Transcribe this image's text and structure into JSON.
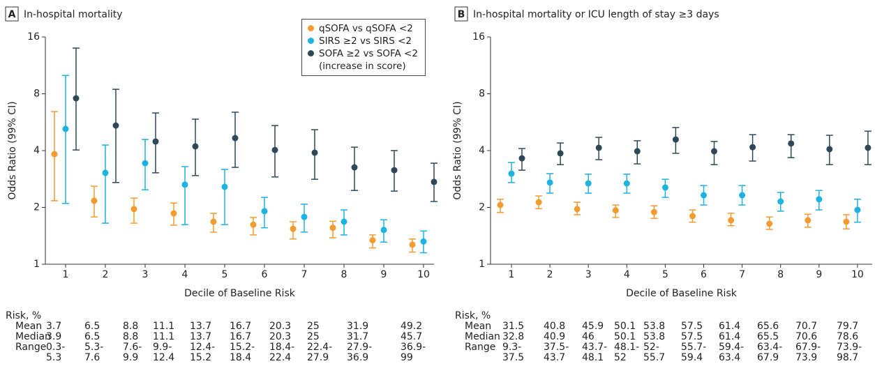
{
  "chart_data": [
    {
      "type": "errorbar",
      "panel": "A",
      "title": "In-hospital mortality",
      "ylabel": "Odds Ratio (99% CI)",
      "xlabel": "Decile of Baseline Risk",
      "categories": [
        1,
        2,
        3,
        4,
        5,
        6,
        7,
        8,
        9,
        10
      ],
      "ylim": [
        1,
        16
      ],
      "yticks": [
        1,
        2,
        4,
        8,
        16
      ],
      "yscale": "log",
      "legend": "upper right",
      "series": [
        {
          "name": "qSOFA vs qSOFA <2",
          "color": "#f29b30",
          "values": [
            3.83,
            2.17,
            1.96,
            1.86,
            1.68,
            1.62,
            1.54,
            1.56,
            1.34,
            1.27
          ],
          "lower": [
            2.17,
            1.78,
            1.65,
            1.61,
            1.48,
            1.43,
            1.36,
            1.38,
            1.22,
            1.16
          ],
          "upper": [
            6.44,
            2.59,
            2.24,
            2.11,
            1.86,
            1.77,
            1.68,
            1.69,
            1.43,
            1.36
          ]
        },
        {
          "name": "SIRS ≥2 vs SIRS <2",
          "color": "#1cb2e2",
          "values": [
            5.21,
            3.05,
            3.43,
            2.64,
            2.57,
            1.91,
            1.78,
            1.68,
            1.52,
            1.32
          ],
          "lower": [
            2.1,
            1.65,
            2.48,
            1.62,
            1.62,
            1.56,
            1.48,
            1.43,
            1.31,
            1.15
          ],
          "upper": [
            10.0,
            4.28,
            4.58,
            3.29,
            3.18,
            2.26,
            2.08,
            1.94,
            1.72,
            1.5
          ]
        },
        {
          "name": "SOFA ≥2 vs SOFA <2 (increase in score)",
          "color": "#2f4858",
          "values": [
            7.57,
            5.43,
            4.47,
            4.21,
            4.66,
            4.03,
            3.9,
            3.26,
            3.15,
            2.73
          ],
          "lower": [
            4.03,
            2.71,
            3.05,
            2.95,
            3.26,
            2.9,
            2.82,
            2.46,
            2.44,
            2.15
          ],
          "upper": [
            13.97,
            8.45,
            6.33,
            5.87,
            6.39,
            5.43,
            5.16,
            4.17,
            4.0,
            3.43
          ]
        }
      ],
      "risk_table": {
        "title": "Risk, %",
        "rows": [
          {
            "label": "Mean",
            "values": [
              3.7,
              6.5,
              8.8,
              11.1,
              13.7,
              16.7,
              20.3,
              25,
              31.9,
              49.2
            ]
          },
          {
            "label": "Median",
            "values": [
              3.9,
              6.5,
              8.8,
              11.1,
              13.7,
              16.7,
              20.3,
              25,
              31.7,
              45.7
            ]
          },
          {
            "label": "Range",
            "values": [
              [
                "0.3-",
                "5.3"
              ],
              [
                "5.3-",
                "7.6"
              ],
              [
                "7.6-",
                "9.9"
              ],
              [
                "9.9-",
                "12.4"
              ],
              [
                "12.4-",
                "15.2"
              ],
              [
                "15.2-",
                "18.4"
              ],
              [
                "18.4-",
                "22.4"
              ],
              [
                "22.4-",
                "27.9"
              ],
              [
                "27.9-",
                "36.9"
              ],
              [
                "36.9-",
                "99"
              ]
            ]
          }
        ]
      }
    },
    {
      "type": "errorbar",
      "panel": "B",
      "title": "In-hospital mortality or ICU length of stay ≥3 days",
      "ylabel": "Odds Ratio (99% CI)",
      "xlabel": "Decile of Baseline Risk",
      "categories": [
        1,
        2,
        3,
        4,
        5,
        6,
        7,
        8,
        9,
        10
      ],
      "ylim": [
        1,
        16
      ],
      "yticks": [
        1,
        2,
        4,
        8,
        16
      ],
      "yscale": "log",
      "series": [
        {
          "color": "#f29b30",
          "values": [
            2.06,
            2.13,
            1.96,
            1.93,
            1.89,
            1.8,
            1.71,
            1.64,
            1.71,
            1.68
          ],
          "lower": [
            1.88,
            1.97,
            1.83,
            1.77,
            1.75,
            1.67,
            1.6,
            1.53,
            1.57,
            1.54
          ],
          "upper": [
            2.21,
            2.3,
            2.13,
            2.06,
            2.04,
            1.94,
            1.86,
            1.78,
            1.84,
            1.83
          ]
        },
        {
          "color": "#1cb2e2",
          "values": [
            3.02,
            2.71,
            2.68,
            2.68,
            2.55,
            2.32,
            2.32,
            2.15,
            2.21,
            1.94
          ],
          "lower": [
            2.71,
            2.38,
            2.38,
            2.38,
            2.26,
            2.06,
            2.06,
            1.91,
            1.94,
            1.67
          ],
          "upper": [
            3.46,
            3.02,
            3.0,
            3.0,
            2.82,
            2.61,
            2.61,
            2.4,
            2.46,
            2.21
          ]
        },
        {
          "color": "#2f4858",
          "values": [
            3.64,
            3.87,
            4.14,
            3.97,
            4.58,
            3.97,
            4.17,
            4.36,
            4.07,
            4.14
          ],
          "lower": [
            3.15,
            3.37,
            3.58,
            3.4,
            3.87,
            3.37,
            3.52,
            3.67,
            3.37,
            3.37
          ],
          "upper": [
            4.1,
            4.39,
            4.7,
            4.51,
            5.3,
            4.47,
            4.86,
            4.86,
            4.82,
            5.07
          ]
        }
      ],
      "risk_table": {
        "title": "Risk, %",
        "rows": [
          {
            "label": "Mean",
            "values": [
              31.5,
              40.8,
              45.9,
              50.1,
              53.8,
              57.5,
              61.4,
              65.6,
              70.7,
              79.7
            ]
          },
          {
            "label": "Median",
            "values": [
              32.8,
              40.9,
              46,
              50.1,
              53.8,
              57.5,
              61.4,
              65.5,
              70.6,
              78.6
            ]
          },
          {
            "label": "Range",
            "values": [
              [
                "9.3-",
                "37.5"
              ],
              [
                "37.5-",
                "43.7"
              ],
              [
                "43.7-",
                "48.1"
              ],
              [
                "48.1-",
                "52"
              ],
              [
                "52-",
                "55.7"
              ],
              [
                "55.7-",
                "59.4"
              ],
              [
                "59.4-",
                "63.4"
              ],
              [
                "63.4-",
                "67.9"
              ],
              [
                "67.9-",
                "73.9"
              ],
              [
                "73.9-",
                "98.7"
              ]
            ]
          }
        ]
      }
    }
  ]
}
